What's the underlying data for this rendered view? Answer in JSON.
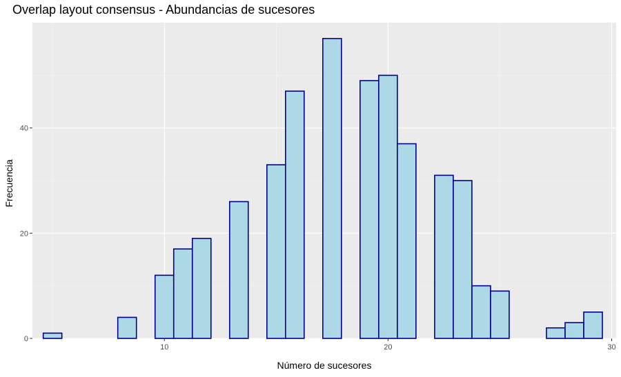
{
  "chart_data": {
    "type": "bar",
    "title": "Overlap layout consensus - Abundancias de sucesores",
    "xlabel": "Número de sucesores",
    "ylabel": "Frecuencia",
    "xlim": [
      4.1,
      30.2
    ],
    "ylim": [
      0,
      60
    ],
    "x_ticks": [
      10,
      20,
      30
    ],
    "y_ticks": [
      0,
      20,
      40
    ],
    "x_tick_labels": [
      "10",
      "20",
      "30"
    ],
    "y_tick_labels": [
      "0",
      "20",
      "40"
    ],
    "bin_width": 0.833,
    "bins": [
      {
        "x": 5.0,
        "count": 1
      },
      {
        "x": 5.833,
        "count": 0
      },
      {
        "x": 6.667,
        "count": 0
      },
      {
        "x": 7.5,
        "count": 0
      },
      {
        "x": 8.333,
        "count": 4
      },
      {
        "x": 9.167,
        "count": 0
      },
      {
        "x": 10.0,
        "count": 12
      },
      {
        "x": 10.833,
        "count": 17
      },
      {
        "x": 11.667,
        "count": 19
      },
      {
        "x": 12.5,
        "count": 0
      },
      {
        "x": 13.333,
        "count": 26
      },
      {
        "x": 14.167,
        "count": 0
      },
      {
        "x": 15.0,
        "count": 33
      },
      {
        "x": 15.833,
        "count": 47
      },
      {
        "x": 16.667,
        "count": 0
      },
      {
        "x": 17.5,
        "count": 57
      },
      {
        "x": 18.333,
        "count": 0
      },
      {
        "x": 19.167,
        "count": 49
      },
      {
        "x": 20.0,
        "count": 50
      },
      {
        "x": 20.833,
        "count": 37
      },
      {
        "x": 21.667,
        "count": 0
      },
      {
        "x": 22.5,
        "count": 31
      },
      {
        "x": 23.333,
        "count": 30
      },
      {
        "x": 24.167,
        "count": 10
      },
      {
        "x": 25.0,
        "count": 9
      },
      {
        "x": 25.833,
        "count": 0
      },
      {
        "x": 26.667,
        "count": 0
      },
      {
        "x": 27.5,
        "count": 2
      },
      {
        "x": 28.333,
        "count": 3
      },
      {
        "x": 29.167,
        "count": 5
      }
    ],
    "grid": true,
    "colors": {
      "panel_background": "#ebebeb",
      "grid_major": "#ffffff",
      "grid_minor": "#f5f5f5",
      "bar_fill": "#add8e6",
      "bar_outline": "#00008b"
    }
  }
}
